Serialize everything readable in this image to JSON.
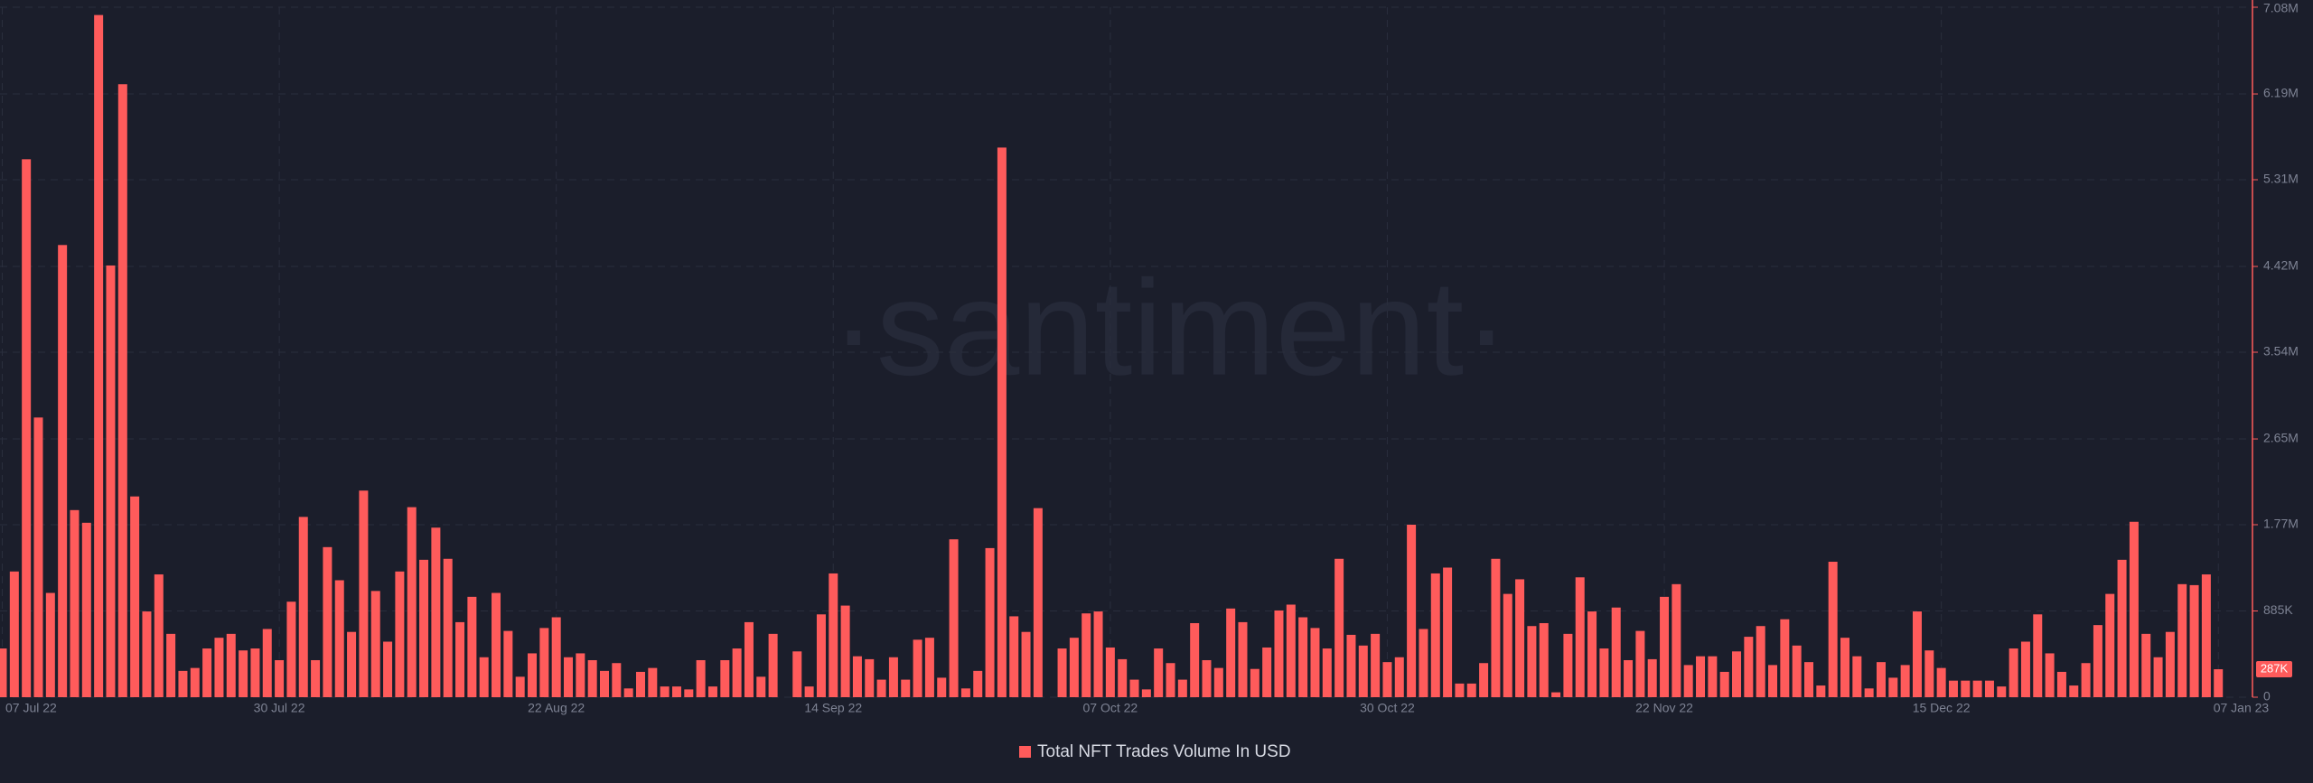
{
  "chart_data": {
    "type": "bar",
    "watermark": "·santiment·",
    "color": "#ff5b5b",
    "grid": true,
    "legend": "bottom",
    "series_name": "Total NFT Trades Volume In USD",
    "categories": [
      "07 Jul 22",
      null,
      null,
      null,
      null,
      null,
      null,
      null,
      null,
      null,
      null,
      null,
      null,
      null,
      null,
      null,
      null,
      null,
      null,
      null,
      null,
      null,
      null,
      "30 Jul 22",
      null,
      null,
      null,
      null,
      null,
      null,
      null,
      null,
      null,
      null,
      null,
      null,
      null,
      null,
      null,
      null,
      null,
      null,
      null,
      null,
      null,
      null,
      "22 Aug 22",
      null,
      null,
      null,
      null,
      null,
      null,
      null,
      null,
      null,
      null,
      null,
      null,
      null,
      null,
      null,
      null,
      null,
      null,
      null,
      null,
      null,
      null,
      "14 Sep 22",
      null,
      null,
      null,
      null,
      null,
      null,
      null,
      null,
      null,
      null,
      null,
      null,
      null,
      null,
      null,
      null,
      null,
      null,
      null,
      null,
      null,
      null,
      "07 Oct 22",
      null,
      null,
      null,
      null,
      null,
      null,
      null,
      null,
      null,
      null,
      null,
      null,
      null,
      null,
      null,
      null,
      null,
      null,
      null,
      null,
      null,
      null,
      "30 Oct 22",
      null,
      null,
      null,
      null,
      null,
      null,
      null,
      null,
      null,
      null,
      null,
      null,
      null,
      null,
      null,
      null,
      null,
      null,
      null,
      null,
      null,
      null,
      "22 Nov 22",
      null,
      null,
      null,
      null,
      null,
      null,
      null,
      null,
      null,
      null,
      null,
      null,
      null,
      null,
      null,
      null,
      null,
      null,
      null,
      null,
      null,
      null,
      "15 Dec 22",
      null,
      null,
      null,
      null,
      null,
      null,
      null,
      null,
      null,
      null,
      null,
      null,
      null,
      null,
      null,
      null,
      null,
      null,
      null,
      null,
      null,
      null,
      "07 Jan 23"
    ],
    "values": [
      500000,
      1290000,
      5520000,
      2870000,
      1070000,
      4640000,
      1920000,
      1790000,
      7000000,
      4430000,
      6290000,
      2060000,
      880000,
      1260000,
      650000,
      270000,
      300000,
      500000,
      610000,
      650000,
      480000,
      500000,
      700000,
      380000,
      980000,
      1850000,
      380000,
      1540000,
      1200000,
      670000,
      2120000,
      1090000,
      570000,
      1290000,
      1950000,
      1410000,
      1740000,
      1420000,
      770000,
      1030000,
      410000,
      1070000,
      680000,
      210000,
      450000,
      710000,
      820000,
      410000,
      450000,
      380000,
      270000,
      350000,
      90000,
      260000,
      300000,
      110000,
      110000,
      80000,
      380000,
      110000,
      380000,
      500000,
      770000,
      210000,
      650000,
      null,
      470000,
      110000,
      850000,
      1270000,
      940000,
      420000,
      390000,
      180000,
      410000,
      180000,
      590000,
      610000,
      200000,
      1620000,
      90000,
      270000,
      1530000,
      5640000,
      830000,
      670000,
      1940000,
      null,
      500000,
      610000,
      860000,
      880000,
      510000,
      390000,
      180000,
      80000,
      500000,
      350000,
      180000,
      760000,
      380000,
      300000,
      910000,
      770000,
      290000,
      510000,
      890000,
      950000,
      820000,
      710000,
      500000,
      1420000,
      640000,
      530000,
      650000,
      360000,
      410000,
      1770000,
      700000,
      1270000,
      1330000,
      140000,
      140000,
      350000,
      1420000,
      1060000,
      1210000,
      730000,
      760000,
      50000,
      650000,
      1230000,
      880000,
      500000,
      920000,
      380000,
      680000,
      390000,
      1030000,
      1160000,
      330000,
      420000,
      420000,
      260000,
      470000,
      620000,
      730000,
      330000,
      800000,
      530000,
      360000,
      120000,
      1390000,
      610000,
      420000,
      90000,
      360000,
      200000,
      330000,
      880000,
      480000,
      300000,
      170000,
      170000,
      170000,
      170000,
      110000,
      500000,
      570000,
      850000,
      450000,
      260000,
      120000,
      350000,
      740000,
      1060000,
      1410000,
      1800000,
      650000,
      410000,
      670000,
      1160000,
      1150000,
      1260000,
      287000
    ],
    "value_labels": [
      null,
      null,
      null,
      null,
      null,
      null,
      null,
      null,
      null,
      null,
      null,
      null,
      null,
      null,
      null,
      null,
      null,
      null,
      null,
      null,
      null,
      null,
      null,
      null,
      null,
      null,
      null,
      null,
      null,
      null,
      null,
      null,
      null,
      null,
      null,
      null,
      null,
      null,
      null,
      null,
      null,
      null,
      null,
      null,
      null,
      null,
      null,
      null,
      null,
      null,
      null,
      null,
      null,
      null,
      null,
      null,
      null,
      null,
      null,
      null,
      null,
      null,
      null,
      null,
      null,
      null,
      null,
      null,
      null,
      null,
      null,
      null,
      null,
      null,
      null,
      null,
      null,
      null,
      null,
      null,
      null,
      null,
      null,
      null,
      null,
      null,
      null,
      null,
      null,
      null,
      null,
      null,
      null,
      null,
      null,
      null,
      null,
      null,
      null,
      null,
      null,
      null,
      null,
      null,
      null,
      null,
      null,
      null,
      null,
      null,
      null,
      null,
      null,
      null,
      null,
      null,
      null,
      null,
      null,
      null,
      null,
      null,
      null,
      null,
      null,
      null,
      null,
      null,
      null,
      null,
      null,
      null,
      null,
      null,
      null,
      null,
      null,
      null,
      null,
      null,
      null,
      null,
      null,
      null,
      null,
      null,
      null,
      null,
      null,
      null,
      null,
      null,
      null,
      null,
      null,
      null,
      null,
      null,
      null,
      null,
      null,
      null,
      null,
      null,
      null,
      null,
      null,
      null,
      null,
      null,
      null,
      null,
      null,
      null,
      null,
      null,
      null,
      null,
      null,
      null,
      null,
      null,
      null,
      null,
      "287K"
    ],
    "ylim": [
      0,
      7080000
    ],
    "yticks": [
      0,
      {
        "value": 885000,
        "label": "885K"
      },
      {
        "value": 1770000,
        "label": "1.77M"
      },
      {
        "value": 2650000,
        "label": "2.65M"
      },
      {
        "value": 3540000,
        "label": "3.54M"
      },
      {
        "value": 4420000,
        "label": "4.42M"
      },
      {
        "value": 5310000,
        "label": "5.31M"
      },
      {
        "value": 6190000,
        "label": "6.19M"
      },
      {
        "value": 7080000,
        "label": "7.08M"
      }
    ]
  }
}
